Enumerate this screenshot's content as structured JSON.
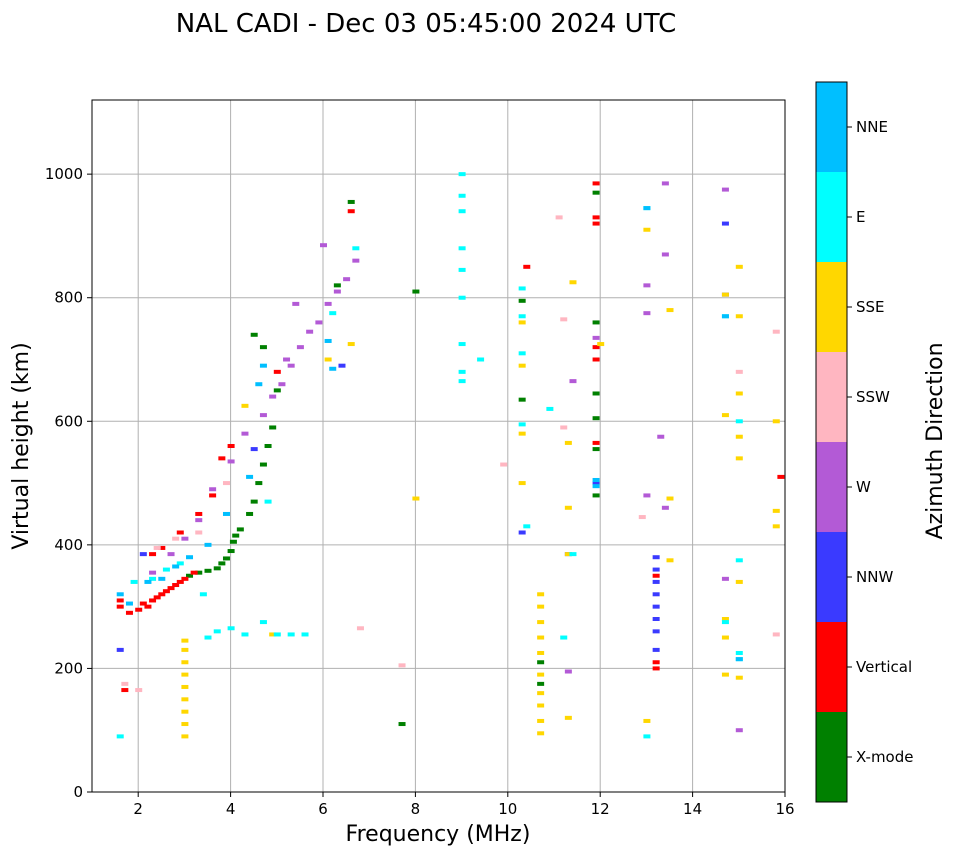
{
  "chart_data": {
    "type": "scatter",
    "title": "NAL CADI - Dec 03 05:45:00 2024 UTC",
    "xlabel": "Frequency (MHz)",
    "ylabel": "Virtual height (km)",
    "xlim": [
      1,
      16
    ],
    "ylim": [
      0,
      1120
    ],
    "xticks": [
      2,
      4,
      6,
      8,
      10,
      12,
      14,
      16
    ],
    "yticks": [
      0,
      200,
      400,
      600,
      800,
      1000
    ],
    "grid": true,
    "colorbar": {
      "label": "Azimuth Direction",
      "categories": [
        {
          "name": "X-mode",
          "color": "#008000"
        },
        {
          "name": "Vertical",
          "color": "#ff0000"
        },
        {
          "name": "NNW",
          "color": "#3a3aff"
        },
        {
          "name": "W",
          "color": "#b35ad6"
        },
        {
          "name": "SSW",
          "color": "#ffb6c1"
        },
        {
          "name": "SSE",
          "color": "#ffd700"
        },
        {
          "name": "E",
          "color": "#00ffff"
        },
        {
          "name": "NNE",
          "color": "#00bfff"
        }
      ]
    },
    "series": [
      {
        "name": "X-mode",
        "points": [
          [
            3.1,
            350
          ],
          [
            3.3,
            355
          ],
          [
            3.5,
            358
          ],
          [
            3.7,
            362
          ],
          [
            3.8,
            370
          ],
          [
            3.9,
            378
          ],
          [
            4.0,
            390
          ],
          [
            4.05,
            405
          ],
          [
            4.1,
            415
          ],
          [
            4.2,
            425
          ],
          [
            4.4,
            450
          ],
          [
            4.5,
            470
          ],
          [
            4.6,
            500
          ],
          [
            4.7,
            530
          ],
          [
            4.8,
            560
          ],
          [
            4.9,
            590
          ],
          [
            4.5,
            740
          ],
          [
            4.7,
            720
          ],
          [
            5.0,
            650
          ],
          [
            6.3,
            820
          ],
          [
            6.6,
            955
          ],
          [
            7.7,
            110
          ],
          [
            8.0,
            810
          ],
          [
            10.3,
            635
          ],
          [
            10.3,
            795
          ],
          [
            10.7,
            175
          ],
          [
            10.7,
            210
          ],
          [
            11.9,
            480
          ],
          [
            11.9,
            555
          ],
          [
            11.9,
            605
          ],
          [
            11.9,
            760
          ],
          [
            11.9,
            970
          ],
          [
            11.9,
            645
          ]
        ]
      },
      {
        "name": "Vertical",
        "points": [
          [
            1.6,
            300
          ],
          [
            1.6,
            310
          ],
          [
            1.7,
            165
          ],
          [
            1.8,
            290
          ],
          [
            2.0,
            295
          ],
          [
            2.1,
            305
          ],
          [
            2.2,
            300
          ],
          [
            2.3,
            310
          ],
          [
            2.4,
            315
          ],
          [
            2.5,
            320
          ],
          [
            2.6,
            325
          ],
          [
            2.7,
            330
          ],
          [
            2.8,
            335
          ],
          [
            2.9,
            340
          ],
          [
            3.0,
            345
          ],
          [
            3.2,
            355
          ],
          [
            2.3,
            385
          ],
          [
            2.5,
            395
          ],
          [
            2.9,
            420
          ],
          [
            3.3,
            450
          ],
          [
            3.6,
            480
          ],
          [
            3.8,
            540
          ],
          [
            4.0,
            560
          ],
          [
            5.0,
            680
          ],
          [
            6.6,
            940
          ],
          [
            10.4,
            850
          ],
          [
            11.9,
            985
          ],
          [
            11.9,
            930
          ],
          [
            11.9,
            920
          ],
          [
            11.9,
            720
          ],
          [
            11.9,
            700
          ],
          [
            11.9,
            565
          ],
          [
            13.2,
            350
          ],
          [
            13.2,
            210
          ],
          [
            13.2,
            200
          ],
          [
            15.9,
            510
          ]
        ]
      },
      {
        "name": "NNW",
        "points": [
          [
            1.6,
            230
          ],
          [
            2.1,
            385
          ],
          [
            4.5,
            555
          ],
          [
            6.4,
            690
          ],
          [
            10.3,
            420
          ],
          [
            11.3,
            385
          ],
          [
            11.9,
            500
          ],
          [
            13.2,
            380
          ],
          [
            13.2,
            360
          ],
          [
            13.2,
            340
          ],
          [
            13.2,
            320
          ],
          [
            13.2,
            300
          ],
          [
            13.2,
            280
          ],
          [
            13.2,
            260
          ],
          [
            13.2,
            230
          ],
          [
            14.7,
            920
          ],
          [
            14.7,
            805
          ]
        ]
      },
      {
        "name": "W",
        "points": [
          [
            2.3,
            355
          ],
          [
            2.7,
            385
          ],
          [
            3.0,
            410
          ],
          [
            3.3,
            440
          ],
          [
            3.6,
            490
          ],
          [
            4.0,
            535
          ],
          [
            4.3,
            580
          ],
          [
            4.7,
            610
          ],
          [
            4.9,
            640
          ],
          [
            5.1,
            660
          ],
          [
            5.3,
            690
          ],
          [
            5.5,
            720
          ],
          [
            5.7,
            745
          ],
          [
            5.9,
            760
          ],
          [
            6.1,
            790
          ],
          [
            6.3,
            810
          ],
          [
            6.5,
            830
          ],
          [
            6.7,
            860
          ],
          [
            6.0,
            885
          ],
          [
            5.4,
            790
          ],
          [
            5.2,
            700
          ],
          [
            11.4,
            665
          ],
          [
            11.3,
            195
          ],
          [
            13.0,
            480
          ],
          [
            13.0,
            820
          ],
          [
            13.3,
            575
          ],
          [
            13.4,
            460
          ],
          [
            13.4,
            870
          ],
          [
            13.4,
            985
          ],
          [
            14.7,
            975
          ],
          [
            14.7,
            345
          ],
          [
            15.0,
            100
          ],
          [
            13.0,
            775
          ],
          [
            11.9,
            735
          ]
        ]
      },
      {
        "name": "SSW",
        "points": [
          [
            1.7,
            175
          ],
          [
            2.0,
            165
          ],
          [
            2.4,
            395
          ],
          [
            2.8,
            410
          ],
          [
            3.3,
            420
          ],
          [
            3.9,
            500
          ],
          [
            6.8,
            265
          ],
          [
            7.7,
            205
          ],
          [
            9.9,
            530
          ],
          [
            11.1,
            930
          ],
          [
            11.2,
            765
          ],
          [
            11.2,
            590
          ],
          [
            12.9,
            445
          ],
          [
            15.0,
            680
          ],
          [
            15.8,
            745
          ],
          [
            15.8,
            255
          ]
        ]
      },
      {
        "name": "SSE",
        "points": [
          [
            3.0,
            90
          ],
          [
            3.0,
            110
          ],
          [
            3.0,
            130
          ],
          [
            3.0,
            150
          ],
          [
            3.0,
            170
          ],
          [
            3.0,
            190
          ],
          [
            3.0,
            210
          ],
          [
            3.0,
            230
          ],
          [
            3.0,
            245
          ],
          [
            4.3,
            625
          ],
          [
            4.9,
            255
          ],
          [
            6.1,
            700
          ],
          [
            6.6,
            725
          ],
          [
            8.0,
            475
          ],
          [
            10.3,
            500
          ],
          [
            10.3,
            580
          ],
          [
            10.3,
            690
          ],
          [
            10.3,
            760
          ],
          [
            10.7,
            95
          ],
          [
            10.7,
            115
          ],
          [
            10.7,
            140
          ],
          [
            10.7,
            160
          ],
          [
            10.7,
            190
          ],
          [
            10.7,
            225
          ],
          [
            10.7,
            250
          ],
          [
            10.7,
            275
          ],
          [
            10.7,
            300
          ],
          [
            10.7,
            320
          ],
          [
            11.3,
            565
          ],
          [
            11.3,
            460
          ],
          [
            11.3,
            385
          ],
          [
            11.3,
            120
          ],
          [
            11.4,
            825
          ],
          [
            12.0,
            725
          ],
          [
            13.0,
            910
          ],
          [
            13.0,
            115
          ],
          [
            13.5,
            780
          ],
          [
            13.5,
            475
          ],
          [
            13.5,
            375
          ],
          [
            14.7,
            610
          ],
          [
            14.7,
            280
          ],
          [
            14.7,
            250
          ],
          [
            14.7,
            190
          ],
          [
            14.7,
            805
          ],
          [
            15.0,
            850
          ],
          [
            15.0,
            770
          ],
          [
            15.0,
            645
          ],
          [
            15.0,
            575
          ],
          [
            15.0,
            540
          ],
          [
            15.0,
            340
          ],
          [
            15.0,
            185
          ],
          [
            15.8,
            600
          ],
          [
            15.8,
            455
          ],
          [
            15.8,
            430
          ]
        ]
      },
      {
        "name": "E",
        "points": [
          [
            1.6,
            90
          ],
          [
            1.9,
            340
          ],
          [
            2.3,
            345
          ],
          [
            2.6,
            360
          ],
          [
            2.9,
            370
          ],
          [
            3.4,
            320
          ],
          [
            3.5,
            250
          ],
          [
            3.7,
            260
          ],
          [
            4.0,
            265
          ],
          [
            4.3,
            255
          ],
          [
            4.7,
            275
          ],
          [
            5.0,
            255
          ],
          [
            5.3,
            255
          ],
          [
            5.6,
            255
          ],
          [
            4.8,
            470
          ],
          [
            6.2,
            775
          ],
          [
            6.7,
            880
          ],
          [
            9.0,
            1000
          ],
          [
            9.0,
            965
          ],
          [
            9.0,
            940
          ],
          [
            9.0,
            880
          ],
          [
            9.0,
            845
          ],
          [
            9.0,
            800
          ],
          [
            9.0,
            725
          ],
          [
            9.0,
            680
          ],
          [
            9.0,
            665
          ],
          [
            9.4,
            700
          ],
          [
            10.3,
            815
          ],
          [
            10.3,
            770
          ],
          [
            10.3,
            710
          ],
          [
            10.3,
            595
          ],
          [
            10.4,
            430
          ],
          [
            11.2,
            250
          ],
          [
            11.4,
            385
          ],
          [
            10.9,
            620
          ],
          [
            13.0,
            945
          ],
          [
            13.0,
            90
          ],
          [
            14.7,
            770
          ],
          [
            14.7,
            275
          ],
          [
            15.0,
            375
          ],
          [
            15.0,
            225
          ],
          [
            15.0,
            215
          ],
          [
            15.0,
            600
          ]
        ]
      },
      {
        "name": "NNE",
        "points": [
          [
            1.6,
            320
          ],
          [
            1.8,
            305
          ],
          [
            2.2,
            340
          ],
          [
            2.5,
            345
          ],
          [
            2.8,
            365
          ],
          [
            3.1,
            380
          ],
          [
            3.5,
            400
          ],
          [
            3.9,
            450
          ],
          [
            4.4,
            510
          ],
          [
            4.6,
            660
          ],
          [
            4.7,
            690
          ],
          [
            6.1,
            730
          ],
          [
            6.2,
            685
          ],
          [
            11.9,
            495
          ],
          [
            11.9,
            505
          ],
          [
            13.0,
            945
          ],
          [
            14.7,
            770
          ],
          [
            15.0,
            215
          ]
        ]
      }
    ]
  }
}
